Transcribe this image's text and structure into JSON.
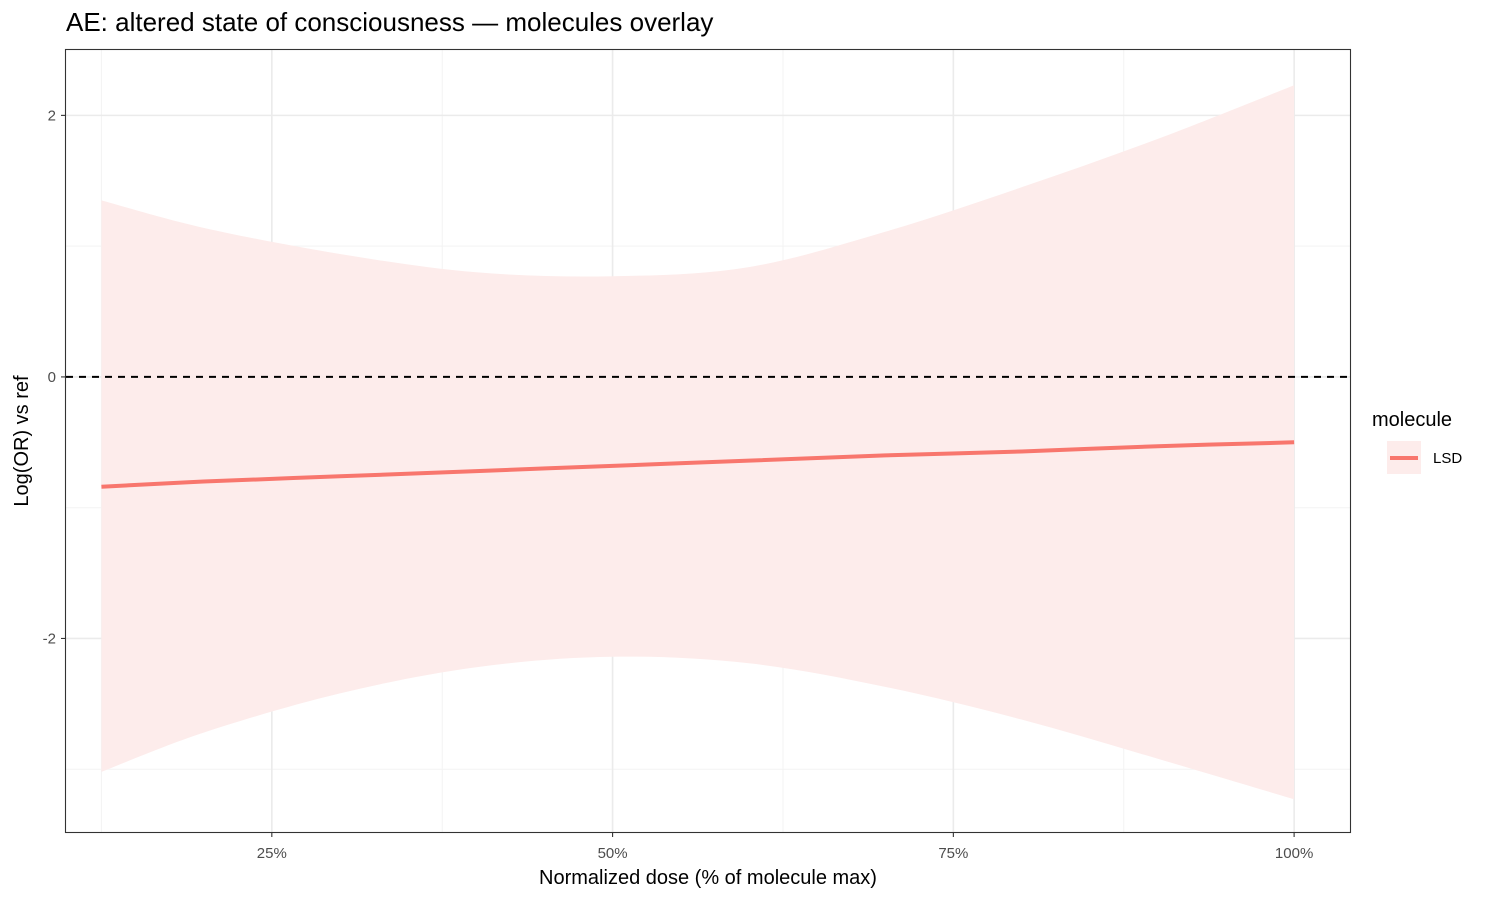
{
  "chart_data": {
    "type": "line",
    "title": "AE: altered state of consciousness — molecules overlay",
    "xlabel": "Normalized dose (% of molecule max)",
    "ylabel": "Log(OR) vs ref",
    "x_unit": "percent",
    "xlim": [
      9.9,
      104.1
    ],
    "ylim": [
      -3.48,
      2.5
    ],
    "x_ticks": [
      {
        "value": 25,
        "label": "25%"
      },
      {
        "value": 50,
        "label": "50%"
      },
      {
        "value": 75,
        "label": "75%"
      },
      {
        "value": 100,
        "label": "100%"
      }
    ],
    "x_minor_ticks": [
      12.5,
      37.5,
      62.5,
      87.5
    ],
    "y_ticks": [
      {
        "value": 2,
        "label": "2"
      },
      {
        "value": 0,
        "label": "0"
      },
      {
        "value": -2,
        "label": "-2"
      }
    ],
    "y_minor_ticks": [
      1,
      -1,
      -3
    ],
    "grid": true,
    "reference_line": {
      "y": 0,
      "style": "dashed",
      "color": "#000000"
    },
    "legend": {
      "title": "molecule",
      "placement": "right"
    },
    "series": [
      {
        "name": "LSD",
        "color": "#F8766D",
        "ribbon_color": "#FDECEB",
        "x": [
          12.5,
          20,
          30,
          40,
          50,
          60,
          70,
          80,
          90,
          100
        ],
        "y": [
          -0.84,
          -0.8,
          -0.76,
          -0.72,
          -0.68,
          -0.64,
          -0.6,
          -0.57,
          -0.53,
          -0.5
        ],
        "lower": [
          -3.02,
          -2.72,
          -2.42,
          -2.22,
          -2.14,
          -2.19,
          -2.37,
          -2.62,
          -2.92,
          -3.23
        ],
        "upper": [
          1.35,
          1.14,
          0.94,
          0.8,
          0.77,
          0.84,
          1.11,
          1.45,
          1.82,
          2.23
        ]
      }
    ]
  }
}
